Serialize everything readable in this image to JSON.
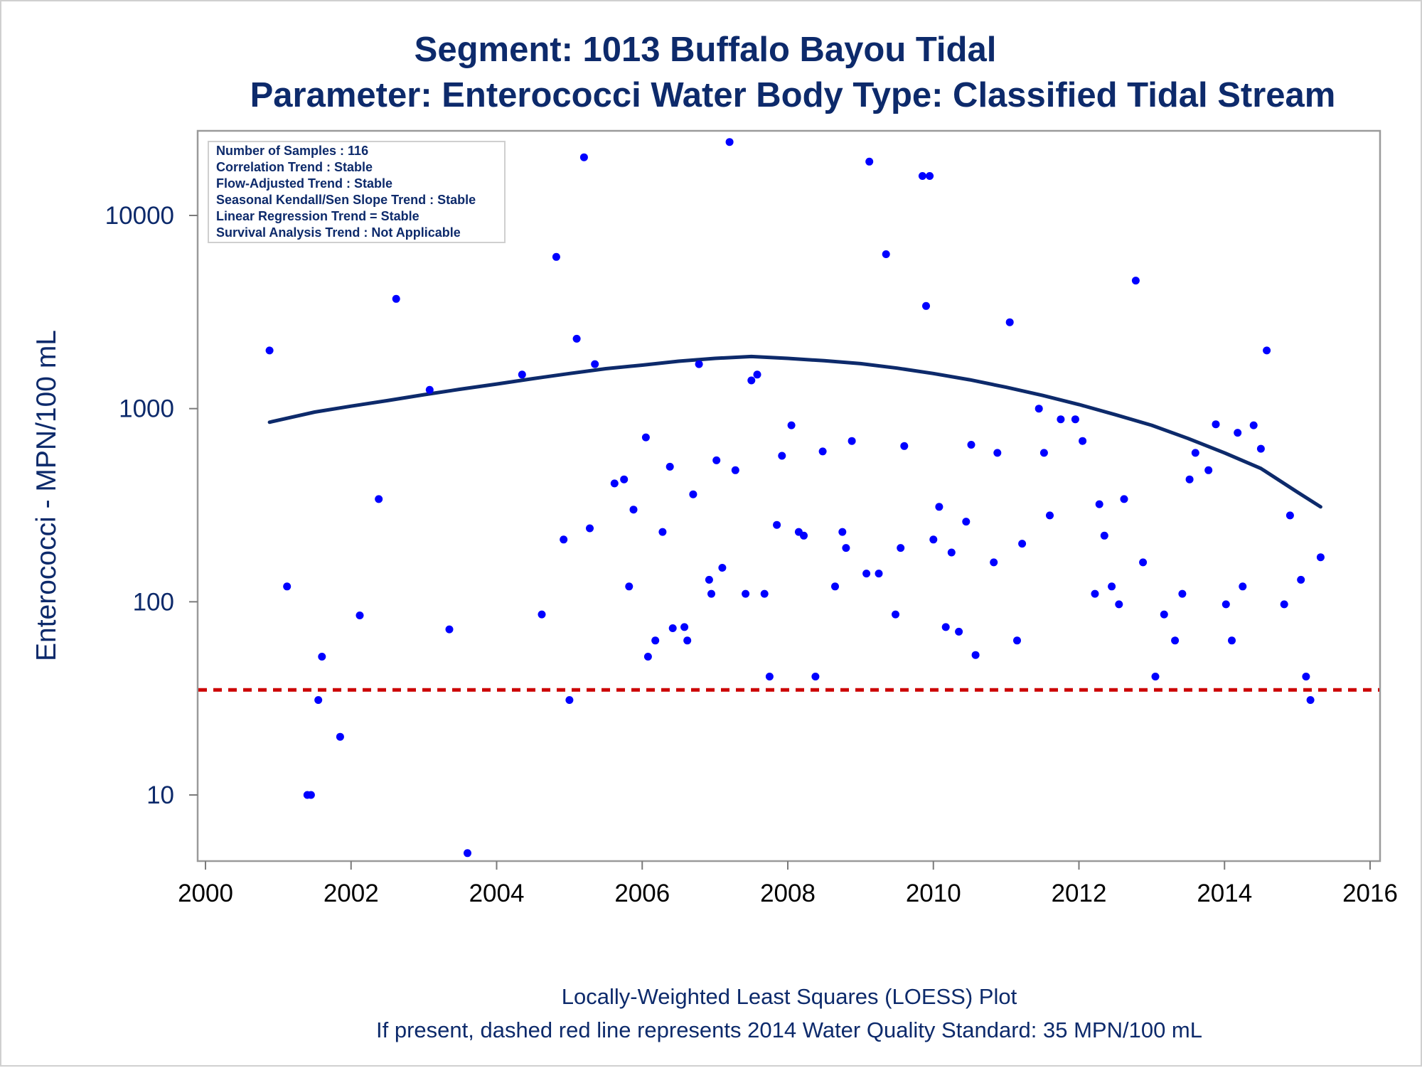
{
  "chart_data": {
    "type": "scatter",
    "title": "Segment: 1013  Buffalo Bayou Tidal",
    "subtitle": "Parameter: Enterococci   Water Body Type: Classified Tidal Stream",
    "xlabel": "",
    "ylabel": "Enterococci - MPN/100 mL",
    "xlim": [
      2000,
      2016
    ],
    "ylim": [
      5,
      25000
    ],
    "yscale": "log",
    "x_ticks": [
      "2000",
      "2002",
      "2004",
      "2006",
      "2008",
      "2010",
      "2012",
      "2014",
      "2016"
    ],
    "y_ticks": [
      "10",
      "100",
      "1000",
      "10000"
    ],
    "grid": false,
    "legend": "none",
    "colors": {
      "points": "#0000ff",
      "loess": "#0d2a6b",
      "standard": "#cc0000",
      "text": "#0d2a6b"
    },
    "stats_box": {
      "position": "top-left",
      "lines": [
        "Number of Samples : 116",
        "Correlation Trend : Stable",
        "Flow-Adjusted Trend : Stable",
        "Seasonal Kendall/Sen Slope Trend : Stable",
        "Linear Regression Trend = Stable",
        "Survival Analysis Trend : Not Applicable"
      ]
    },
    "reference_line": {
      "value": 35,
      "style": "dashed"
    },
    "footnotes": [
      "Locally-Weighted Least Squares (LOESS) Plot",
      "If present, dashed red line represents 2014 Water Quality Standard: 35 MPN/100 mL"
    ],
    "series": [
      {
        "type": "scatter",
        "points": [
          [
            2000.88,
            2000
          ],
          [
            2001.12,
            120
          ],
          [
            2001.4,
            10
          ],
          [
            2001.45,
            10
          ],
          [
            2001.55,
            31
          ],
          [
            2001.6,
            52
          ],
          [
            2001.85,
            20
          ],
          [
            2002.12,
            85
          ],
          [
            2002.38,
            340
          ],
          [
            2002.62,
            3700
          ],
          [
            2003.08,
            1250
          ],
          [
            2003.35,
            72
          ],
          [
            2003.6,
            5
          ],
          [
            2004.35,
            1500
          ],
          [
            2004.62,
            86
          ],
          [
            2004.82,
            6100
          ],
          [
            2004.92,
            210
          ],
          [
            2005.0,
            31
          ],
          [
            2005.1,
            2300
          ],
          [
            2005.2,
            20000
          ],
          [
            2005.28,
            240
          ],
          [
            2005.35,
            1700
          ],
          [
            2005.62,
            410
          ],
          [
            2005.75,
            430
          ],
          [
            2005.82,
            120
          ],
          [
            2005.88,
            300
          ],
          [
            2006.05,
            710
          ],
          [
            2006.08,
            52
          ],
          [
            2006.18,
            63
          ],
          [
            2006.28,
            230
          ],
          [
            2006.38,
            500
          ],
          [
            2006.42,
            73
          ],
          [
            2006.58,
            74
          ],
          [
            2006.62,
            63
          ],
          [
            2006.7,
            360
          ],
          [
            2006.78,
            1700
          ],
          [
            2006.92,
            130
          ],
          [
            2006.95,
            110
          ],
          [
            2007.02,
            540
          ],
          [
            2007.1,
            150
          ],
          [
            2007.2,
            24000
          ],
          [
            2007.28,
            480
          ],
          [
            2007.42,
            110
          ],
          [
            2007.5,
            1400
          ],
          [
            2007.58,
            1500
          ],
          [
            2007.68,
            110
          ],
          [
            2007.75,
            41
          ],
          [
            2007.85,
            250
          ],
          [
            2007.92,
            570
          ],
          [
            2008.05,
            820
          ],
          [
            2008.15,
            230
          ],
          [
            2008.22,
            220
          ],
          [
            2008.38,
            41
          ],
          [
            2008.48,
            600
          ],
          [
            2008.65,
            120
          ],
          [
            2008.75,
            230
          ],
          [
            2008.8,
            190
          ],
          [
            2008.88,
            680
          ],
          [
            2009.08,
            140
          ],
          [
            2009.12,
            19000
          ],
          [
            2009.25,
            140
          ],
          [
            2009.35,
            6300
          ],
          [
            2009.48,
            86
          ],
          [
            2009.55,
            190
          ],
          [
            2009.6,
            640
          ],
          [
            2009.85,
            16000
          ],
          [
            2009.9,
            3400
          ],
          [
            2009.95,
            16000
          ],
          [
            2010.0,
            210
          ],
          [
            2010.08,
            310
          ],
          [
            2010.17,
            74
          ],
          [
            2010.25,
            180
          ],
          [
            2010.35,
            70
          ],
          [
            2010.45,
            260
          ],
          [
            2010.52,
            650
          ],
          [
            2010.58,
            53
          ],
          [
            2010.83,
            160
          ],
          [
            2010.88,
            590
          ],
          [
            2011.05,
            2800
          ],
          [
            2011.15,
            63
          ],
          [
            2011.22,
            200
          ],
          [
            2011.45,
            1000
          ],
          [
            2011.52,
            590
          ],
          [
            2011.6,
            280
          ],
          [
            2011.75,
            880
          ],
          [
            2011.95,
            880
          ],
          [
            2012.05,
            680
          ],
          [
            2012.22,
            110
          ],
          [
            2012.28,
            320
          ],
          [
            2012.35,
            220
          ],
          [
            2012.45,
            120
          ],
          [
            2012.55,
            97
          ],
          [
            2012.62,
            340
          ],
          [
            2012.78,
            4600
          ],
          [
            2012.88,
            160
          ],
          [
            2013.05,
            41
          ],
          [
            2013.17,
            86
          ],
          [
            2013.32,
            63
          ],
          [
            2013.42,
            110
          ],
          [
            2013.52,
            430
          ],
          [
            2013.6,
            590
          ],
          [
            2013.78,
            480
          ],
          [
            2013.88,
            830
          ],
          [
            2014.02,
            97
          ],
          [
            2014.1,
            63
          ],
          [
            2014.18,
            750
          ],
          [
            2014.25,
            120
          ],
          [
            2014.4,
            820
          ],
          [
            2014.5,
            620
          ],
          [
            2014.58,
            2000
          ],
          [
            2014.82,
            97
          ],
          [
            2014.9,
            280
          ],
          [
            2015.05,
            130
          ],
          [
            2015.12,
            41
          ],
          [
            2015.18,
            31
          ],
          [
            2015.32,
            170
          ]
        ]
      },
      {
        "type": "line",
        "points": [
          [
            2000.88,
            850
          ],
          [
            2001.5,
            960
          ],
          [
            2002.0,
            1030
          ],
          [
            2002.5,
            1100
          ],
          [
            2003.0,
            1180
          ],
          [
            2003.5,
            1260
          ],
          [
            2004.0,
            1340
          ],
          [
            2004.5,
            1430
          ],
          [
            2005.0,
            1520
          ],
          [
            2005.5,
            1610
          ],
          [
            2006.0,
            1680
          ],
          [
            2006.5,
            1760
          ],
          [
            2007.0,
            1820
          ],
          [
            2007.5,
            1860
          ],
          [
            2008.0,
            1820
          ],
          [
            2008.5,
            1770
          ],
          [
            2009.0,
            1710
          ],
          [
            2009.5,
            1620
          ],
          [
            2010.0,
            1520
          ],
          [
            2010.5,
            1410
          ],
          [
            2011.0,
            1290
          ],
          [
            2011.5,
            1170
          ],
          [
            2012.0,
            1050
          ],
          [
            2012.5,
            930
          ],
          [
            2013.0,
            820
          ],
          [
            2013.5,
            700
          ],
          [
            2014.0,
            590
          ],
          [
            2014.5,
            490
          ],
          [
            2015.0,
            370
          ],
          [
            2015.32,
            310
          ]
        ]
      }
    ]
  }
}
